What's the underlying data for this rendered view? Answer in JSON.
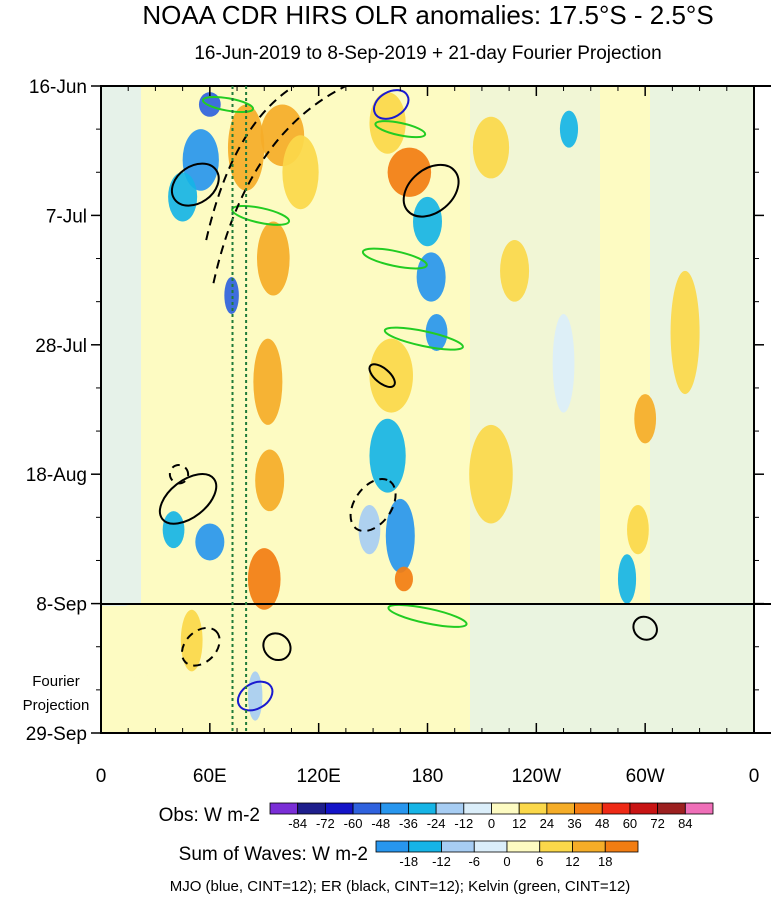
{
  "chart_data": {
    "type": "heatmap",
    "title": "NOAA CDR HIRS OLR anomalies: 17.5°S - 2.5°S",
    "subtitle": "16-Jun-2019 to 8-Sep-2019 + 21-day Fourier Projection",
    "x_ticks": [
      {
        "lon": 0,
        "label": "0"
      },
      {
        "lon": 60,
        "label": "60E"
      },
      {
        "lon": 120,
        "label": "120E"
      },
      {
        "lon": 180,
        "label": "180"
      },
      {
        "lon": 240,
        "label": "120W"
      },
      {
        "lon": 300,
        "label": "60W"
      },
      {
        "lon": 360,
        "label": "0"
      }
    ],
    "x_range": [
      0,
      360
    ],
    "y_ticks": [
      {
        "day": 0,
        "label": "16-Jun"
      },
      {
        "day": 21,
        "label": "7-Jul"
      },
      {
        "day": 42,
        "label": "28-Jul"
      },
      {
        "day": 63,
        "label": "18-Aug"
      },
      {
        "day": 84,
        "label": "8-Sep"
      },
      {
        "day": 105,
        "label": "29-Sep"
      }
    ],
    "y_range": [
      0,
      105
    ],
    "projection_start_day": 84,
    "projection_label_line1": "Fourier",
    "projection_label_line2": "Projection",
    "reference_lons": [
      72.5,
      80
    ],
    "obs_legend": {
      "title": "Obs: W m-2",
      "labels": [
        "-84",
        "-72",
        "-60",
        "-48",
        "-36",
        "-24",
        "-12",
        "0",
        "12",
        "24",
        "36",
        "48",
        "60",
        "72",
        "84"
      ],
      "colors": [
        "#7a2ed6",
        "#1e1e8c",
        "#1414c8",
        "#2f62de",
        "#2896ee",
        "#16b4e6",
        "#a7cdf3",
        "#dbeefa",
        "#fdfbc2",
        "#fbd84a",
        "#f5ad28",
        "#f27d12",
        "#ee2a16",
        "#c81414",
        "#9c2020",
        "#ef6fb8"
      ]
    },
    "waves_legend": {
      "title": "Sum of Waves: W m-2",
      "labels": [
        "-18",
        "-12",
        "-6",
        "0",
        "6",
        "12",
        "18"
      ],
      "colors": [
        "#2896ee",
        "#16b4e6",
        "#a7cdf3",
        "#dbeefa",
        "#fdfbc2",
        "#fbd84a",
        "#f5ad28",
        "#f27d12"
      ]
    },
    "footnote": "MJO (blue, CINT=12); ER (black, CINT=12); Kelvin (green, CINT=12)",
    "anomalies": [
      {
        "lon": 60,
        "day": 3,
        "value": -55,
        "rlon": 6,
        "rday": 2
      },
      {
        "lon": 55,
        "day": 12,
        "value": -40,
        "rlon": 10,
        "rday": 5
      },
      {
        "lon": 45,
        "day": 18,
        "value": -35,
        "rlon": 8,
        "rday": 4
      },
      {
        "lon": 72,
        "day": 34,
        "value": -60,
        "rlon": 4,
        "rday": 3
      },
      {
        "lon": 80,
        "day": 10,
        "value": 30,
        "rlon": 10,
        "rday": 7
      },
      {
        "lon": 100,
        "day": 8,
        "value": 25,
        "rlon": 12,
        "rday": 5
      },
      {
        "lon": 110,
        "day": 14,
        "value": 20,
        "rlon": 10,
        "rday": 6
      },
      {
        "lon": 95,
        "day": 28,
        "value": 35,
        "rlon": 9,
        "rday": 6
      },
      {
        "lon": 92,
        "day": 48,
        "value": 25,
        "rlon": 8,
        "rday": 7
      },
      {
        "lon": 93,
        "day": 64,
        "value": 28,
        "rlon": 8,
        "rday": 5
      },
      {
        "lon": 90,
        "day": 80,
        "value": 40,
        "rlon": 9,
        "rday": 5
      },
      {
        "lon": 60,
        "day": 74,
        "value": -38,
        "rlon": 8,
        "rday": 3
      },
      {
        "lon": 40,
        "day": 72,
        "value": -25,
        "rlon": 6,
        "rday": 3
      },
      {
        "lon": 170,
        "day": 14,
        "value": 42,
        "rlon": 12,
        "rday": 4
      },
      {
        "lon": 158,
        "day": 6,
        "value": 20,
        "rlon": 10,
        "rday": 5
      },
      {
        "lon": 180,
        "day": 22,
        "value": -35,
        "rlon": 8,
        "rday": 4
      },
      {
        "lon": 182,
        "day": 31,
        "value": -45,
        "rlon": 8,
        "rday": 4
      },
      {
        "lon": 185,
        "day": 40,
        "value": -40,
        "rlon": 6,
        "rday": 3
      },
      {
        "lon": 160,
        "day": 47,
        "value": 20,
        "rlon": 12,
        "rday": 6
      },
      {
        "lon": 158,
        "day": 60,
        "value": -30,
        "rlon": 10,
        "rday": 6
      },
      {
        "lon": 165,
        "day": 73,
        "value": -40,
        "rlon": 8,
        "rday": 6
      },
      {
        "lon": 167,
        "day": 80,
        "value": 42,
        "rlon": 5,
        "rday": 2
      },
      {
        "lon": 148,
        "day": 72,
        "value": -20,
        "rlon": 6,
        "rday": 4
      },
      {
        "lon": 258,
        "day": 7,
        "value": -30,
        "rlon": 5,
        "rday": 3
      },
      {
        "lon": 215,
        "day": 10,
        "value": 20,
        "rlon": 10,
        "rday": 5
      },
      {
        "lon": 228,
        "day": 30,
        "value": 18,
        "rlon": 8,
        "rday": 5
      },
      {
        "lon": 300,
        "day": 54,
        "value": 25,
        "rlon": 6,
        "rday": 4
      },
      {
        "lon": 296,
        "day": 72,
        "value": 15,
        "rlon": 6,
        "rday": 4
      },
      {
        "lon": 290,
        "day": 80,
        "value": -30,
        "rlon": 5,
        "rday": 4
      },
      {
        "lon": 322,
        "day": 40,
        "value": 12,
        "rlon": 8,
        "rday": 10
      },
      {
        "lon": 20,
        "day": 90,
        "value": 10,
        "rlon": 18,
        "rday": 6
      },
      {
        "lon": 50,
        "day": 90,
        "value": 20,
        "rlon": 6,
        "rday": 5
      },
      {
        "lon": 85,
        "day": 99,
        "value": -18,
        "rlon": 4,
        "rday": 4
      },
      {
        "lon": 215,
        "day": 63,
        "value": 12,
        "rlon": 12,
        "rday": 8
      },
      {
        "lon": 255,
        "day": 45,
        "value": -12,
        "rlon": 6,
        "rday": 8
      }
    ]
  }
}
